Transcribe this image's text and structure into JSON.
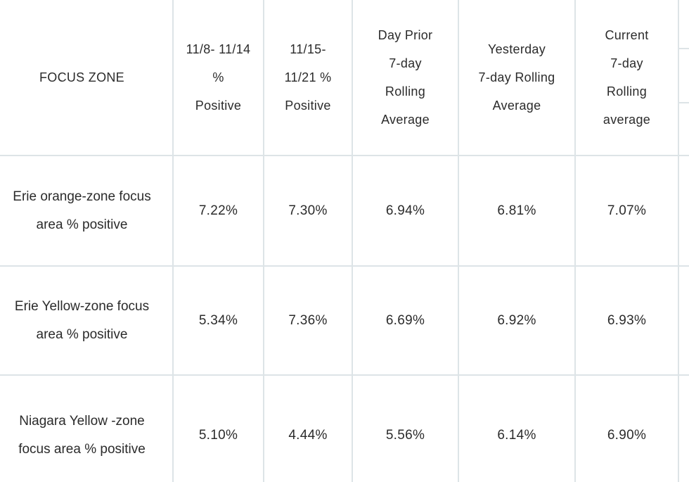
{
  "table": {
    "headers": [
      "FOCUS ZONE",
      "11/8- 11/14\n%\nPositive",
      "11/15-\n11/21 %\nPositive",
      "Day Prior\n7-day\nRolling\nAverage",
      "Yesterday\n7-day Rolling\nAverage",
      "Current\n7-day\nRolling\naverage"
    ],
    "rows": [
      {
        "label": "Erie orange-zone focus\narea % positive",
        "values": [
          "7.22%",
          "7.30%",
          "6.94%",
          "6.81%",
          "7.07%"
        ]
      },
      {
        "label": "Erie Yellow-zone focus\narea % positive",
        "values": [
          "5.34%",
          "7.36%",
          "6.69%",
          "6.92%",
          "6.93%"
        ]
      },
      {
        "label": "Niagara Yellow -zone\nfocus area % positive",
        "values": [
          "5.10%",
          "4.44%",
          "5.56%",
          "6.14%",
          "6.90%"
        ]
      }
    ]
  },
  "colors": {
    "border": "#dde4e7",
    "text": "#2b2b2b",
    "background": "#ffffff"
  }
}
